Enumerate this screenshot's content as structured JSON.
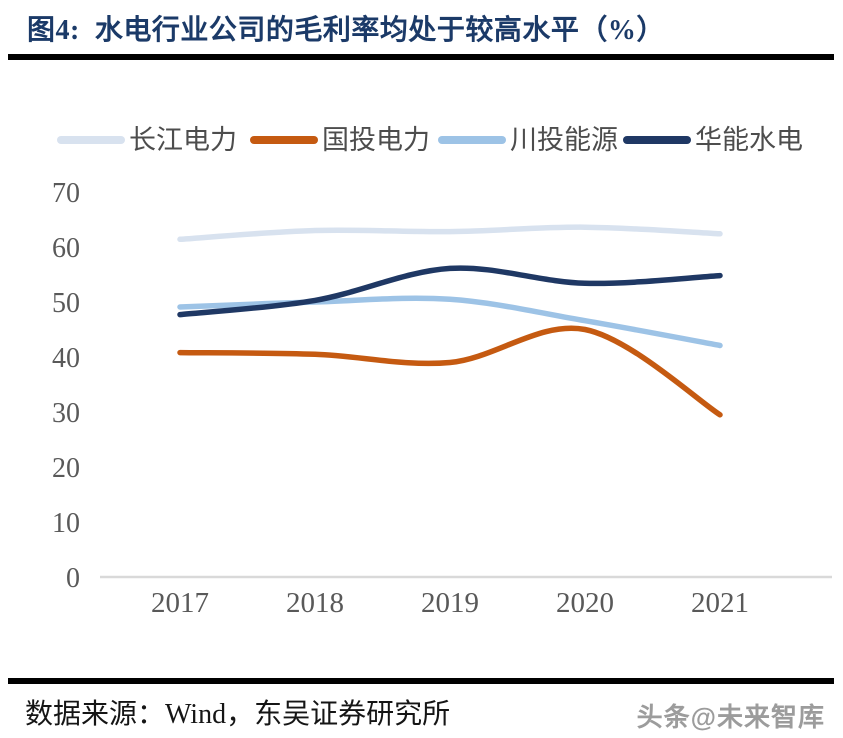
{
  "header": {
    "title": "图4:  水电行业公司的毛利率均处于较高水平（%）"
  },
  "chart_data": {
    "type": "line",
    "title": "水电行业公司的毛利率均处于较高水平（%）",
    "categories": [
      "2017",
      "2018",
      "2019",
      "2020",
      "2021"
    ],
    "series": [
      {
        "name": "长江电力",
        "color": "#d8e2ef",
        "values": [
          61.4,
          63.0,
          62.8,
          63.6,
          62.4
        ]
      },
      {
        "name": "国投电力",
        "color": "#c55a11",
        "values": [
          40.8,
          40.5,
          39.0,
          45.0,
          29.5
        ]
      },
      {
        "name": "川投能源",
        "color": "#9dc3e6",
        "values": [
          49.1,
          50.0,
          50.5,
          46.6,
          42.1
        ]
      },
      {
        "name": "华能水电",
        "color": "#1f3864",
        "values": [
          47.7,
          50.3,
          56.1,
          53.4,
          54.8
        ]
      }
    ],
    "ylim": [
      0,
      70
    ],
    "yticks": [
      0,
      10,
      20,
      30,
      40,
      50,
      60,
      70
    ],
    "grid": false,
    "legend_position": "top",
    "axis_color": "#d9d9d9",
    "tick_label_color": "#595959",
    "line_width": 5.5,
    "smoothed": true
  },
  "footer": {
    "source": "数据来源：Wind，东吴证券研究所",
    "watermark": "头条@未来智库"
  }
}
